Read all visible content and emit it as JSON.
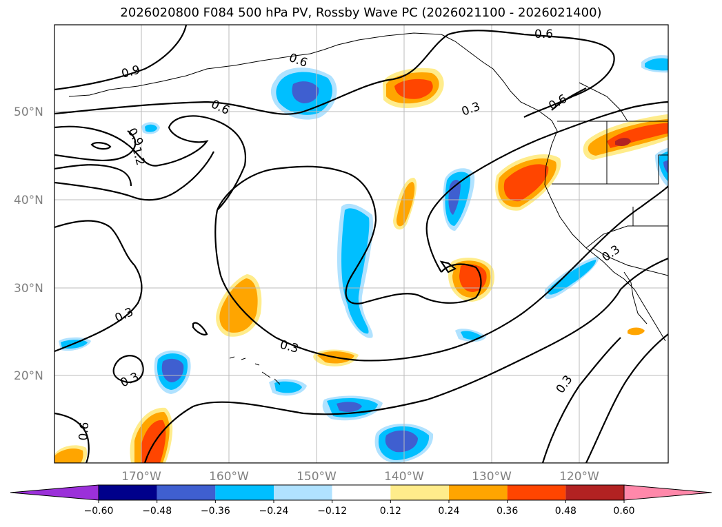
{
  "title": "2026020800 F084 500 hPa PV, Rossby Wave PC (2026021100 - 2026021400)",
  "map": {
    "lon_ticks": [
      "170°W",
      "160°W",
      "150°W",
      "140°W",
      "130°W",
      "120°W"
    ],
    "lat_ticks": [
      "50°N",
      "40°N",
      "30°N",
      "20°N"
    ],
    "contour_labels": [
      "0.9",
      "0.6",
      "0.6",
      "0.9",
      "1.2",
      "0.3",
      "0.6",
      "0.3",
      "0.3",
      "0.3",
      "0.3",
      "0.6",
      "0.3"
    ]
  },
  "colorbar": {
    "ticks": [
      "−0.60",
      "−0.48",
      "−0.36",
      "−0.24",
      "−0.12",
      "0.12",
      "0.24",
      "0.36",
      "0.48",
      "0.60"
    ],
    "colors": [
      "#9b30d9",
      "#00008b",
      "#3f5fd0",
      "#00bfff",
      "#b0e2ff",
      "#ffffff",
      "#ffec8b",
      "#ffa500",
      "#ff4500",
      "#b22222",
      "#ff88aa"
    ]
  }
}
